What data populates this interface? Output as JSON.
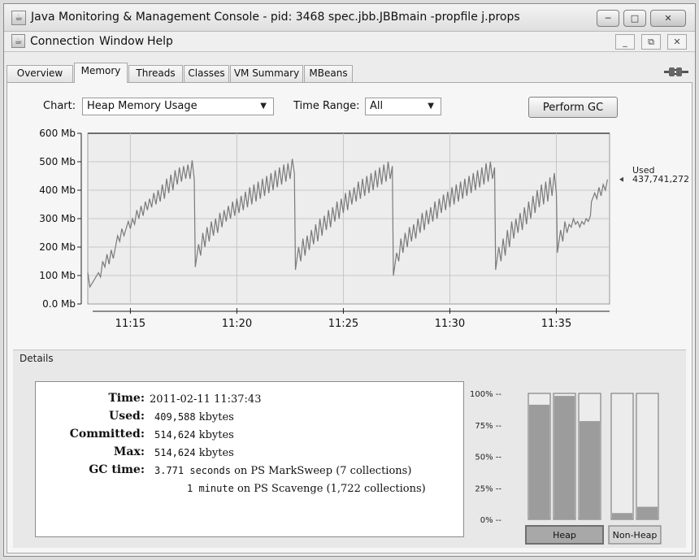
{
  "window": {
    "title": "Java Monitoring & Management Console - pid: 3468 spec.jbb.JBBmain -propfile j.props",
    "app_icon": "java-cup-icon"
  },
  "menubar": {
    "items": [
      "Connection",
      "Window",
      "Help"
    ]
  },
  "tabs": [
    {
      "label": "Overview",
      "active": false
    },
    {
      "label": "Memory",
      "active": true
    },
    {
      "label": "Threads",
      "active": false
    },
    {
      "label": "Classes",
      "active": false
    },
    {
      "label": "VM Summary",
      "active": false
    },
    {
      "label": "MBeans",
      "active": false
    }
  ],
  "controls": {
    "chart_label": "Chart:",
    "chart_value": "Heap Memory Usage",
    "range_label": "Time Range:",
    "range_value": "All",
    "gc_button": "Perform GC"
  },
  "chart_data": {
    "type": "line",
    "y_ticks": [
      "600 Mb",
      "500 Mb",
      "400 Mb",
      "300 Mb",
      "200 Mb",
      "100 Mb",
      "0.0 Mb"
    ],
    "ylim": [
      0,
      600
    ],
    "x_ticks": [
      "11:15",
      "11:20",
      "11:25",
      "11:30",
      "11:35"
    ],
    "x_tick_minutes": [
      15,
      20,
      25,
      30,
      35
    ],
    "xlim_minutes": [
      13.0,
      37.5
    ],
    "grid": true,
    "series_color": "#7a7a7a",
    "legend_label": "Used",
    "legend_value": "437,741,272",
    "series": [
      {
        "values_mb": [
          [
            13.0,
            110
          ],
          [
            13.1,
            60
          ],
          [
            13.3,
            85
          ],
          [
            13.5,
            110
          ],
          [
            13.6,
            95
          ],
          [
            13.7,
            150
          ],
          [
            13.8,
            130
          ],
          [
            13.9,
            175
          ],
          [
            14.0,
            140
          ],
          [
            14.1,
            190
          ],
          [
            14.2,
            160
          ],
          [
            14.4,
            240
          ],
          [
            14.5,
            220
          ],
          [
            14.6,
            265
          ],
          [
            14.7,
            240
          ],
          [
            14.9,
            290
          ],
          [
            15.0,
            265
          ],
          [
            15.1,
            300
          ],
          [
            15.2,
            280
          ],
          [
            15.3,
            330
          ],
          [
            15.4,
            300
          ],
          [
            15.5,
            345
          ],
          [
            15.6,
            310
          ],
          [
            15.7,
            360
          ],
          [
            15.8,
            330
          ],
          [
            15.9,
            370
          ],
          [
            16.0,
            340
          ],
          [
            16.1,
            390
          ],
          [
            16.2,
            350
          ],
          [
            16.3,
            400
          ],
          [
            16.4,
            360
          ],
          [
            16.5,
            420
          ],
          [
            16.6,
            370
          ],
          [
            16.7,
            440
          ],
          [
            16.8,
            390
          ],
          [
            16.9,
            455
          ],
          [
            17.0,
            400
          ],
          [
            17.1,
            470
          ],
          [
            17.2,
            420
          ],
          [
            17.3,
            480
          ],
          [
            17.4,
            430
          ],
          [
            17.5,
            485
          ],
          [
            17.6,
            440
          ],
          [
            17.7,
            490
          ],
          [
            17.8,
            440
          ],
          [
            17.9,
            505
          ],
          [
            18.0,
            440
          ],
          [
            18.05,
            130
          ],
          [
            18.2,
            210
          ],
          [
            18.3,
            170
          ],
          [
            18.4,
            250
          ],
          [
            18.5,
            200
          ],
          [
            18.6,
            270
          ],
          [
            18.7,
            220
          ],
          [
            18.8,
            290
          ],
          [
            18.9,
            240
          ],
          [
            19.0,
            300
          ],
          [
            19.1,
            250
          ],
          [
            19.2,
            320
          ],
          [
            19.3,
            270
          ],
          [
            19.4,
            330
          ],
          [
            19.5,
            290
          ],
          [
            19.6,
            345
          ],
          [
            19.7,
            300
          ],
          [
            19.8,
            360
          ],
          [
            19.9,
            310
          ],
          [
            20.0,
            370
          ],
          [
            20.1,
            320
          ],
          [
            20.2,
            380
          ],
          [
            20.3,
            330
          ],
          [
            20.4,
            395
          ],
          [
            20.5,
            340
          ],
          [
            20.6,
            410
          ],
          [
            20.7,
            350
          ],
          [
            20.8,
            420
          ],
          [
            20.9,
            360
          ],
          [
            21.0,
            430
          ],
          [
            21.1,
            370
          ],
          [
            21.2,
            440
          ],
          [
            21.3,
            380
          ],
          [
            21.4,
            450
          ],
          [
            21.5,
            390
          ],
          [
            21.6,
            460
          ],
          [
            21.7,
            400
          ],
          [
            21.8,
            470
          ],
          [
            21.9,
            410
          ],
          [
            22.0,
            480
          ],
          [
            22.1,
            420
          ],
          [
            22.2,
            490
          ],
          [
            22.3,
            430
          ],
          [
            22.4,
            495
          ],
          [
            22.5,
            440
          ],
          [
            22.6,
            510
          ],
          [
            22.7,
            460
          ],
          [
            22.75,
            120
          ],
          [
            22.9,
            200
          ],
          [
            23.0,
            150
          ],
          [
            23.1,
            230
          ],
          [
            23.2,
            170
          ],
          [
            23.3,
            240
          ],
          [
            23.4,
            190
          ],
          [
            23.5,
            260
          ],
          [
            23.6,
            210
          ],
          [
            23.7,
            280
          ],
          [
            23.8,
            220
          ],
          [
            23.9,
            300
          ],
          [
            24.0,
            240
          ],
          [
            24.1,
            310
          ],
          [
            24.2,
            260
          ],
          [
            24.3,
            330
          ],
          [
            24.4,
            270
          ],
          [
            24.5,
            340
          ],
          [
            24.6,
            290
          ],
          [
            24.7,
            360
          ],
          [
            24.8,
            300
          ],
          [
            24.9,
            370
          ],
          [
            25.0,
            320
          ],
          [
            25.1,
            390
          ],
          [
            25.2,
            330
          ],
          [
            25.3,
            400
          ],
          [
            25.4,
            350
          ],
          [
            25.5,
            410
          ],
          [
            25.6,
            360
          ],
          [
            25.7,
            430
          ],
          [
            25.8,
            370
          ],
          [
            25.9,
            440
          ],
          [
            26.0,
            380
          ],
          [
            26.1,
            450
          ],
          [
            26.2,
            390
          ],
          [
            26.3,
            460
          ],
          [
            26.4,
            400
          ],
          [
            26.5,
            470
          ],
          [
            26.6,
            410
          ],
          [
            26.7,
            480
          ],
          [
            26.8,
            420
          ],
          [
            26.9,
            490
          ],
          [
            27.0,
            430
          ],
          [
            27.1,
            500
          ],
          [
            27.2,
            440
          ],
          [
            27.3,
            485
          ],
          [
            27.35,
            100
          ],
          [
            27.5,
            180
          ],
          [
            27.6,
            150
          ],
          [
            27.7,
            230
          ],
          [
            27.8,
            180
          ],
          [
            27.9,
            250
          ],
          [
            28.0,
            200
          ],
          [
            28.1,
            270
          ],
          [
            28.2,
            220
          ],
          [
            28.3,
            280
          ],
          [
            28.4,
            230
          ],
          [
            28.5,
            300
          ],
          [
            28.6,
            250
          ],
          [
            28.7,
            320
          ],
          [
            28.8,
            260
          ],
          [
            28.9,
            330
          ],
          [
            29.0,
            280
          ],
          [
            29.1,
            340
          ],
          [
            29.2,
            290
          ],
          [
            29.3,
            360
          ],
          [
            29.4,
            300
          ],
          [
            29.5,
            370
          ],
          [
            29.6,
            320
          ],
          [
            29.7,
            385
          ],
          [
            29.8,
            330
          ],
          [
            29.9,
            395
          ],
          [
            30.0,
            340
          ],
          [
            30.1,
            410
          ],
          [
            30.2,
            350
          ],
          [
            30.3,
            420
          ],
          [
            30.4,
            360
          ],
          [
            30.5,
            430
          ],
          [
            30.6,
            370
          ],
          [
            30.7,
            440
          ],
          [
            30.8,
            380
          ],
          [
            30.9,
            450
          ],
          [
            31.0,
            390
          ],
          [
            31.1,
            460
          ],
          [
            31.2,
            400
          ],
          [
            31.3,
            470
          ],
          [
            31.4,
            410
          ],
          [
            31.5,
            480
          ],
          [
            31.6,
            420
          ],
          [
            31.7,
            495
          ],
          [
            31.8,
            430
          ],
          [
            31.9,
            500
          ],
          [
            32.0,
            440
          ],
          [
            32.1,
            480
          ],
          [
            32.15,
            120
          ],
          [
            32.3,
            200
          ],
          [
            32.4,
            150
          ],
          [
            32.5,
            230
          ],
          [
            32.6,
            170
          ],
          [
            32.7,
            260
          ],
          [
            32.8,
            200
          ],
          [
            32.9,
            290
          ],
          [
            33.0,
            230
          ],
          [
            33.1,
            300
          ],
          [
            33.2,
            250
          ],
          [
            33.3,
            320
          ],
          [
            33.4,
            260
          ],
          [
            33.5,
            340
          ],
          [
            33.6,
            280
          ],
          [
            33.7,
            360
          ],
          [
            33.8,
            300
          ],
          [
            33.9,
            380
          ],
          [
            34.0,
            320
          ],
          [
            34.1,
            400
          ],
          [
            34.2,
            340
          ],
          [
            34.3,
            420
          ],
          [
            34.4,
            350
          ],
          [
            34.5,
            430
          ],
          [
            34.6,
            360
          ],
          [
            34.7,
            445
          ],
          [
            34.8,
            380
          ],
          [
            34.9,
            460
          ],
          [
            35.0,
            390
          ],
          [
            35.05,
            180
          ],
          [
            35.2,
            260
          ],
          [
            35.3,
            220
          ],
          [
            35.4,
            290
          ],
          [
            35.5,
            250
          ],
          [
            35.6,
            280
          ],
          [
            35.7,
            270
          ],
          [
            35.8,
            300
          ],
          [
            35.9,
            280
          ],
          [
            36.0,
            290
          ],
          [
            36.1,
            270
          ],
          [
            36.2,
            290
          ],
          [
            36.3,
            280
          ],
          [
            36.4,
            300
          ],
          [
            36.5,
            290
          ],
          [
            36.6,
            310
          ],
          [
            36.65,
            360
          ],
          [
            36.8,
            390
          ],
          [
            36.9,
            370
          ],
          [
            37.0,
            410
          ],
          [
            37.1,
            380
          ],
          [
            37.2,
            420
          ],
          [
            37.3,
            400
          ],
          [
            37.4,
            437.7
          ]
        ]
      }
    ]
  },
  "details": {
    "title": "Details",
    "rows": [
      {
        "label": "Time:",
        "value": "2011-02-11 11:37:43",
        "unit": ""
      },
      {
        "label": "Used:",
        "value": "409,588",
        "unit": "kbytes"
      },
      {
        "label": "Committed:",
        "value": "514,624",
        "unit": "kbytes"
      },
      {
        "label": "Max:",
        "value": "514,624",
        "unit": "kbytes"
      }
    ],
    "gc_label": "GC time:",
    "gc_lines": [
      {
        "value": "3.771 seconds",
        "text": "on PS MarkSweep (7 collections)"
      },
      {
        "value": "1 minute",
        "text": "on PS Scavenge (1,722 collections)"
      }
    ]
  },
  "pools_chart": {
    "y_ticks": [
      "100% --",
      "75% --",
      "50% --",
      "25% --",
      "0% --"
    ],
    "groups": [
      {
        "label": "Heap",
        "pools": [
          0.91,
          0.98,
          0.78
        ]
      },
      {
        "label": "Non-Heap",
        "pools": [
          0.05,
          0.1
        ]
      }
    ]
  }
}
